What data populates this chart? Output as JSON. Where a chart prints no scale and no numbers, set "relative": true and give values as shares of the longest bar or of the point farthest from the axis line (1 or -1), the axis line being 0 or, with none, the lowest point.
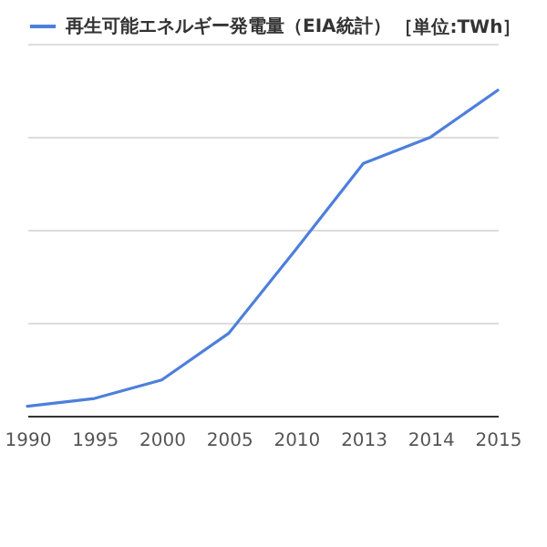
{
  "chart_data": {
    "type": "line",
    "relative": true,
    "grid": "y",
    "legend": "top left",
    "categories": [
      "1990",
      "1995",
      "2000",
      "2005",
      "2010",
      "2013",
      "2014",
      "2015"
    ],
    "series": [
      {
        "name": "再生可能エネルギー発電量（EIA統計）",
        "color": "#4d7fdc",
        "values": [
          0.029,
          0.053,
          0.11,
          0.254,
          0.512,
          0.775,
          0.856,
          1
        ]
      }
    ],
    "annotations": [
      "［単位:TWh］"
    ]
  }
}
